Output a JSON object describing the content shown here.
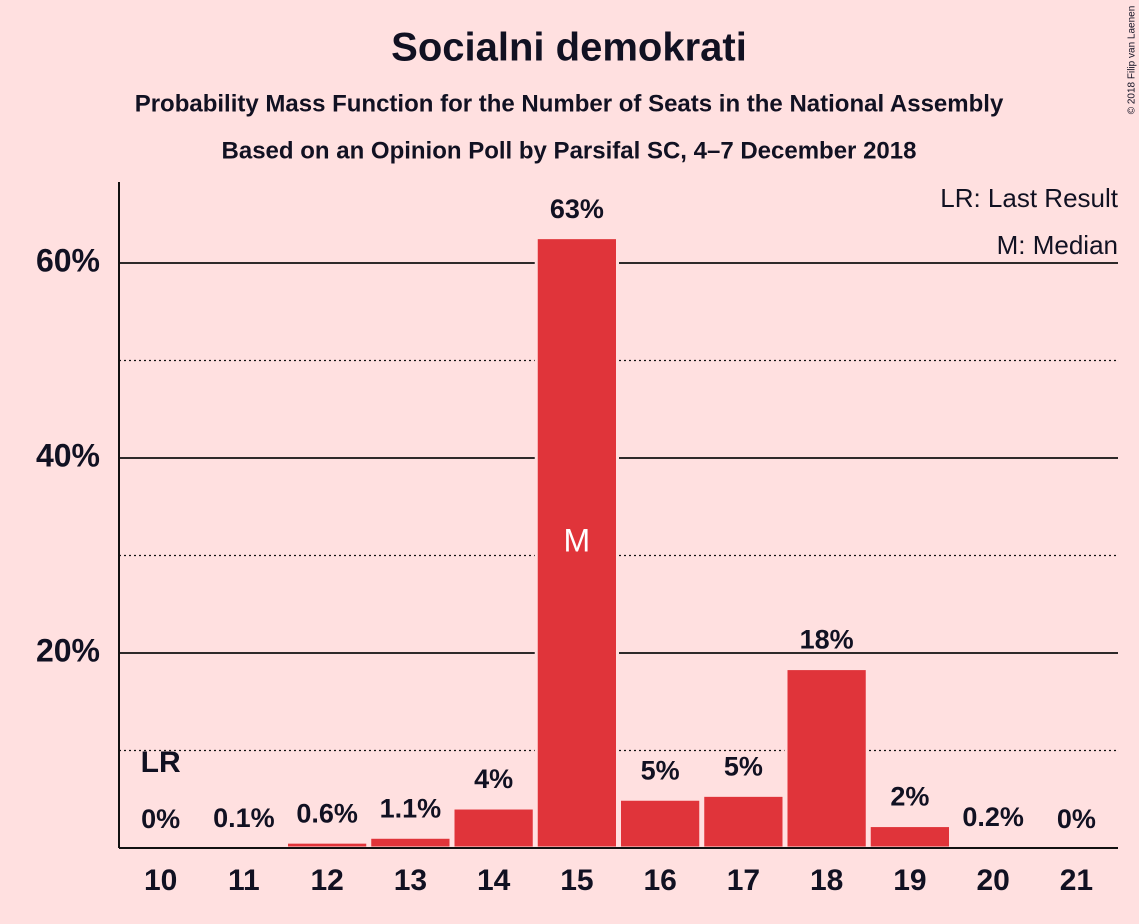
{
  "chart_data": {
    "type": "bar",
    "title": "Socialni demokrati",
    "subtitle": [
      "Probability Mass Function for the Number of Seats in the National Assembly",
      "Based on an Opinion Poll by Parsifal SC, 4–7 December 2018"
    ],
    "categories": [
      "10",
      "11",
      "12",
      "13",
      "14",
      "15",
      "16",
      "17",
      "18",
      "19",
      "20",
      "21"
    ],
    "values": [
      0,
      0.1,
      0.6,
      1.1,
      4.1,
      62.6,
      5.0,
      5.4,
      18.4,
      2.3,
      0.2,
      0
    ],
    "value_labels": [
      "0%",
      "0.1%",
      "0.6%",
      "1.1%",
      "4%",
      "63%",
      "5%",
      "5%",
      "18%",
      "2%",
      "0.2%",
      "0%"
    ],
    "color": "#e0343a",
    "ylim": [
      0,
      68
    ],
    "yticks": [
      {
        "value": 20,
        "label": "20%"
      },
      {
        "value": 40,
        "label": "40%"
      },
      {
        "value": 60,
        "label": "60%"
      }
    ],
    "minor_yticks": [
      10,
      30,
      50
    ],
    "grid": true,
    "last_result": {
      "text": "LR",
      "category": "10"
    },
    "median": {
      "text": "M",
      "category": "15"
    },
    "legend": [
      "LR: Last Result",
      "M: Median"
    ],
    "copyright": "© 2018 Filip van Laenen"
  }
}
